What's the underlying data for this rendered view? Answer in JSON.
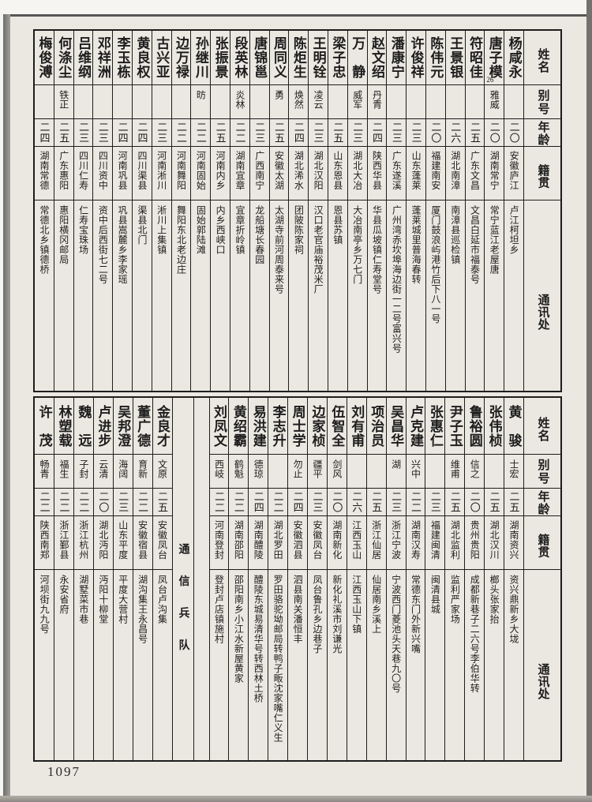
{
  "page": {
    "number": "1097"
  },
  "colors": {
    "paper": "#ebe8e1",
    "ink": "#1d1d1d"
  },
  "headers": {
    "name": "姓名",
    "alias": "别号",
    "age": "年龄",
    "origin": "籍贯",
    "address": "通讯处"
  },
  "section": {
    "label": "通信兵队"
  },
  "top_table": {
    "rows": [
      {
        "name": "杨咸永",
        "alias": "",
        "age": "二〇",
        "origin": "安徽庐江",
        "address": "卢江柯坦乡"
      },
      {
        "name": "唐子模",
        "note": "26",
        "alias": "雅威",
        "age": "二〇",
        "origin": "湖南常宁",
        "address": "常宁蓝江老屋唐"
      },
      {
        "name": "符昭佳",
        "alias": "",
        "age": "二五",
        "origin": "广东文昌",
        "address": "文昌白延市福泰号"
      },
      {
        "name": "王景银",
        "alias": "",
        "age": "二六",
        "origin": "湖北南漳",
        "address": "南漳县巡检镇"
      },
      {
        "name": "陈伟元",
        "alias": "",
        "age": "二〇",
        "origin": "福建南安",
        "address": "厦门鼓浪屿港竹后下八一号"
      },
      {
        "name": "许俊祥",
        "alias": "",
        "age": "二三",
        "origin": "山东蓬莱",
        "address": "蓬莱城里普海春转"
      },
      {
        "name": "潘康宁",
        "alias": "",
        "age": "二三",
        "origin": "广东遂溪",
        "address": "广州湾赤坎埠海边街一二号富兴号"
      },
      {
        "name": "赵文绍",
        "alias": "丹青",
        "age": "二四",
        "origin": "陕西华县",
        "address": "华县瓜坡镇仁寿堂号"
      },
      {
        "name": "万　静",
        "alias": "威军",
        "age": "二三",
        "origin": "湖北大冶",
        "address": "大冶南亭乡万七门"
      },
      {
        "name": "梁子忠",
        "alias": "",
        "age": "二五",
        "origin": "山东恩县",
        "address": "恩县苏镇"
      },
      {
        "name": "王明铨",
        "alias": "凌云",
        "age": "二三",
        "origin": "湖北汉阳",
        "address": "汉口老官庙裕茂米厂"
      },
      {
        "name": "陈炬生",
        "alias": "焕然",
        "age": "二四",
        "origin": "湖北浠水",
        "address": "团陂陈家祠"
      },
      {
        "name": "周同义",
        "alias": "勇",
        "age": "二五",
        "origin": "安徽太湖",
        "address": "太湖寺前河周泰来号"
      },
      {
        "name": "唐锦邕",
        "alias": "",
        "age": "二三",
        "origin": "广西南宁",
        "address": "龙船塘长春园"
      },
      {
        "name": "段英林",
        "alias": "炎林",
        "age": "二二",
        "origin": "湖南宜章",
        "address": "宜章折岭镇"
      },
      {
        "name": "张振景",
        "alias": "",
        "age": "二五",
        "origin": "河南内乡",
        "address": "内乡西峡口"
      },
      {
        "name": "孙继川",
        "alias": "昉",
        "age": "二二",
        "origin": "河南固始",
        "address": "固始郭陆滩"
      },
      {
        "name": "边万禄",
        "alias": "",
        "age": "二二",
        "origin": "河南舞阳",
        "address": "舞阳东北老边庄"
      },
      {
        "name": "古兴亚",
        "alias": "",
        "age": "二三",
        "origin": "河南淅川",
        "address": "淅川上集镇"
      },
      {
        "name": "黄良权",
        "alias": "",
        "age": "二四",
        "origin": "四川渠县",
        "address": "渠县北门"
      },
      {
        "name": "李玉栋",
        "alias": "",
        "age": "二四",
        "origin": "河南巩县",
        "address": "巩县嵩麓乡李家瑶"
      },
      {
        "name": "邓祥洲",
        "alias": "",
        "age": "二三",
        "origin": "四川资中",
        "address": "资中后西街七二号"
      },
      {
        "name": "吕维纲",
        "alias": "",
        "age": "二三",
        "origin": "四川仁寿",
        "address": "仁寿宝珠场"
      },
      {
        "name": "何涤尘",
        "alias": "铁正",
        "age": "二五",
        "origin": "广东惠阳",
        "address": "惠阳横冈邮局"
      },
      {
        "name": "梅俊溥",
        "alias": "",
        "age": "二四",
        "origin": "湖南常德",
        "address": "常德北乡镇德桥"
      }
    ]
  },
  "bottom_table": {
    "rows": [
      {
        "name": "黄　骏",
        "alias": "士宏",
        "age": "二五",
        "origin": "湖南资兴",
        "address": "资兴鼎新乡大垅"
      },
      {
        "name": "张伟桢",
        "alias": "",
        "age": "二五",
        "origin": "湖北汉川",
        "address": "榔头张家抬"
      },
      {
        "name": "鲁裕圆",
        "alias": "信之",
        "age": "二〇",
        "origin": "贵州贵阳",
        "address": "成都新巷子二六号李伯华转"
      },
      {
        "name": "尹子玉",
        "alias": "维甫",
        "age": "二五",
        "origin": "湖北监利",
        "address": "监利严家场"
      },
      {
        "name": "张惠仁",
        "alias": "",
        "age": "二三",
        "origin": "福建闽清",
        "address": "闽清县城"
      },
      {
        "name": "卢克建",
        "alias": "兴中",
        "age": "二二",
        "origin": "湖南汉寿",
        "address": "常德东门外新兴嘴"
      },
      {
        "name": "吴昌华",
        "alias": "湖",
        "age": "二三",
        "origin": "浙江宁波",
        "address": "宁波西门菱池头天巷九〇号"
      },
      {
        "name": "项治员",
        "alias": "",
        "age": "二五",
        "origin": "浙江仙居",
        "address": "仙居南乡溪上"
      },
      {
        "name": "刘有甫",
        "alias": "",
        "age": "二六",
        "origin": "江西玉山",
        "address": "江西玉山下镇"
      },
      {
        "name": "伍智全",
        "alias": "剑风",
        "age": "二〇",
        "origin": "湖南新化",
        "address": "新化礼溪市刘谦光"
      },
      {
        "name": "边家桢",
        "alias": "疆平",
        "age": "二三",
        "origin": "安徽凤台",
        "address": "凤台鲁孔乡边巷子"
      },
      {
        "name": "周士学",
        "alias": "勿止",
        "age": "二四",
        "origin": "安徽泗县",
        "address": "泗县南关潘恒丰"
      },
      {
        "name": "李志升",
        "alias": "",
        "age": "二二",
        "origin": "湖北罗田",
        "address": "罗田骆驼坳邮局转鸭子畈沈家嘴仁义生"
      },
      {
        "name": "易洪建",
        "alias": "德琼",
        "age": "二四",
        "origin": "湖南醴陵",
        "address": "醴陵东城易清华号转西林土桥"
      },
      {
        "name": "黄绍霸",
        "alias": "鹤魁",
        "age": "二二",
        "origin": "湖南邵阳",
        "address": "邵阳南乡小江水新屋黄家"
      },
      {
        "name": "刘凤文",
        "alias": "西岐",
        "age": "二二",
        "origin": "河南登封",
        "address": "登封卢店镇施村"
      },
      {
        "type": "spacer"
      },
      {
        "type": "section"
      },
      {
        "name": "金良才",
        "alias": "文原",
        "age": "二五",
        "origin": "安徽凤台",
        "address": "凤台卢沟集"
      },
      {
        "name": "董广德",
        "alias": "育新",
        "age": "二二",
        "origin": "安徽宿县",
        "address": "湖沟集王永昌号"
      },
      {
        "name": "吴邦澄",
        "alias": "海阔",
        "age": "二三",
        "origin": "山东平度",
        "address": "平度大营村"
      },
      {
        "name": "卢进步",
        "alias": "云清",
        "age": "二〇",
        "origin": "湖北沔阳",
        "address": "沔阳十柳堂"
      },
      {
        "name": "魏　远",
        "alias": "子封",
        "age": "二二",
        "origin": "浙江杭州",
        "address": "湖墅菜市巷"
      },
      {
        "name": "林塑载",
        "alias": "福生",
        "age": "二二",
        "origin": "浙江鄞县",
        "address": "永安省府"
      },
      {
        "name": "许　茂",
        "alias": "畅青",
        "age": "二二",
        "origin": "陕西南郑",
        "address": "河坝街九九号"
      }
    ]
  }
}
